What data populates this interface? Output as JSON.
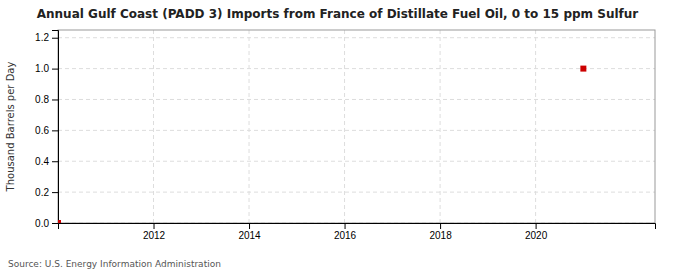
{
  "chart_data": {
    "type": "scatter",
    "title": "Annual Gulf Coast (PADD 3) Imports from France of Distillate Fuel Oil, 0 to 15 ppm Sulfur",
    "ylabel": "Thousand Barrels per Day",
    "annotations": [
      "Source: U.S. Energy Information Administration"
    ],
    "x": [
      2010,
      2021
    ],
    "values": [
      0.0,
      1.0
    ],
    "color": "#cc0000",
    "marker": "square",
    "xlim": [
      2010.0,
      2022.5
    ],
    "ylim": [
      0.0,
      1.25
    ],
    "xticks": [
      2012,
      2014,
      2016,
      2018,
      2020
    ],
    "yticks": [
      {
        "value": 0.0,
        "label": "0.0"
      },
      0.2,
      0.4,
      0.6,
      0.8,
      {
        "value": 1.0,
        "label": "1.0"
      },
      1.2
    ],
    "grid": true
  }
}
